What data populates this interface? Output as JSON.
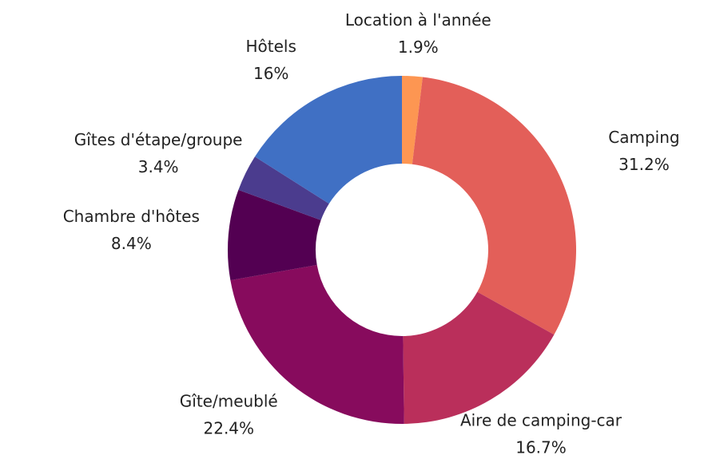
{
  "chart_data": {
    "type": "donut",
    "categories": [
      "Location à l'année",
      "Camping",
      "Aire de camping-car",
      "Gîte/meublé",
      "Chambre d'hôtes",
      "Gîtes d'étape/groupe",
      "Hôtels"
    ],
    "values": [
      1.9,
      31.2,
      16.7,
      22.4,
      8.4,
      3.4,
      16
    ],
    "value_labels": [
      "1.9%",
      "31.2%",
      "16.7%",
      "22.4%",
      "8.4%",
      "3.4%",
      "16%"
    ],
    "colors": [
      "#fd9652",
      "#e35f59",
      "#ba2f5b",
      "#870b5d",
      "#530052",
      "#4b3c8e",
      "#4070c4"
    ]
  }
}
